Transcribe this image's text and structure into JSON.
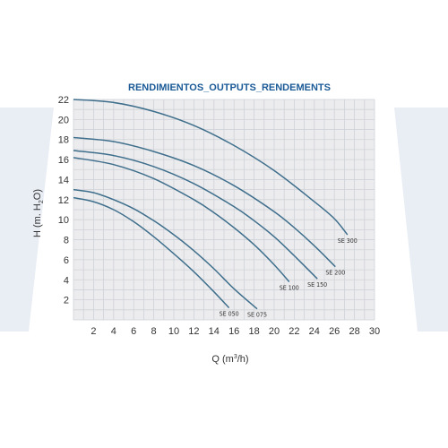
{
  "chart_data": {
    "type": "line",
    "title": "RENDIMIENTOS_OUTPUTS_RENDEMENTS",
    "xlabel_main": "Q (m",
    "xlabel_sup": "3",
    "xlabel_end": "/h)",
    "ylabel_main": "H (m. H",
    "ylabel_sub": "2",
    "ylabel_end": "O)",
    "xlim": [
      0,
      30
    ],
    "ylim": [
      0,
      22
    ],
    "xticks": [
      "2",
      "4",
      "6",
      "8",
      "10",
      "12",
      "14",
      "16",
      "18",
      "20",
      "22",
      "24",
      "26",
      "28",
      "30"
    ],
    "yticks": [
      "2",
      "4",
      "6",
      "8",
      "10",
      "12",
      "14",
      "16",
      "18",
      "20",
      "22"
    ],
    "grid": true,
    "series": [
      {
        "name": "SE 050",
        "points": [
          [
            0,
            12.2
          ],
          [
            2,
            11.8
          ],
          [
            4,
            11
          ],
          [
            6,
            9.8
          ],
          [
            8,
            8.3
          ],
          [
            10,
            6.6
          ],
          [
            12,
            4.8
          ],
          [
            14,
            2.8
          ],
          [
            15.5,
            1.2
          ]
        ]
      },
      {
        "name": "SE 075",
        "points": [
          [
            0,
            13
          ],
          [
            2,
            12.7
          ],
          [
            4,
            12
          ],
          [
            6,
            11.1
          ],
          [
            8,
            9.9
          ],
          [
            10,
            8.5
          ],
          [
            12,
            6.9
          ],
          [
            14,
            5.1
          ],
          [
            16,
            3.1
          ],
          [
            18.3,
            1.1
          ]
        ]
      },
      {
        "name": "SE 100",
        "points": [
          [
            0,
            16.2
          ],
          [
            4,
            15.5
          ],
          [
            8,
            14.1
          ],
          [
            12,
            12
          ],
          [
            14,
            10.7
          ],
          [
            16,
            9.2
          ],
          [
            18,
            7.5
          ],
          [
            20,
            5.5
          ],
          [
            21.5,
            3.8
          ]
        ]
      },
      {
        "name": "SE 150",
        "points": [
          [
            0,
            16.9
          ],
          [
            4,
            16.4
          ],
          [
            8,
            15.3
          ],
          [
            12,
            13.6
          ],
          [
            16,
            11.3
          ],
          [
            18,
            9.9
          ],
          [
            20,
            8.3
          ],
          [
            22,
            6.4
          ],
          [
            24.3,
            4.1
          ]
        ]
      },
      {
        "name": "SE 200",
        "points": [
          [
            0,
            18.2
          ],
          [
            4,
            17.8
          ],
          [
            8,
            16.8
          ],
          [
            12,
            15.4
          ],
          [
            16,
            13.4
          ],
          [
            20,
            10.8
          ],
          [
            22,
            9.2
          ],
          [
            24,
            7.4
          ],
          [
            26.1,
            5.3
          ]
        ]
      },
      {
        "name": "SE 300",
        "points": [
          [
            0,
            22
          ],
          [
            4,
            21.7
          ],
          [
            8,
            20.8
          ],
          [
            12,
            19.4
          ],
          [
            16,
            17.4
          ],
          [
            20,
            14.9
          ],
          [
            24,
            11.8
          ],
          [
            26,
            10.1
          ],
          [
            27.3,
            8.5
          ]
        ]
      }
    ],
    "colors": {
      "grid": "#cfd2d8",
      "plot_bg": "#ececee",
      "curve": "#3f6f8c",
      "title": "#1a5a96",
      "watermark": "#e9eef5"
    }
  }
}
